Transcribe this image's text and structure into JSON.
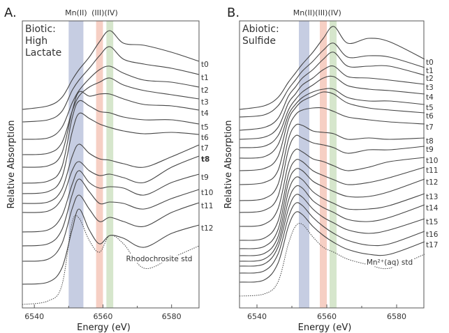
{
  "chart_data": [
    {
      "type": "line",
      "panel_label": "A.",
      "panel_title": [
        "Biotic:",
        "High",
        "Lactate"
      ],
      "xlabel": "Energy (eV)",
      "ylabel": "Relative Absorption",
      "xlim": [
        6536.5,
        6588
      ],
      "ylim": [
        8,
        420
      ],
      "xticks": [
        6540,
        6560,
        6580
      ],
      "minor_xticks": [
        6550,
        6570
      ],
      "grid": false,
      "bands": [
        {
          "label": "Mn(II)",
          "range": [
            6550,
            6554.3
          ],
          "color": "#c6cde2"
        },
        {
          "label": "(III)",
          "range": [
            6558,
            6560
          ],
          "color": "#f6cfc4"
        },
        {
          "label": "(IV)",
          "range": [
            6561,
            6563
          ],
          "color": "#d6e6cc"
        }
      ],
      "band_header": [
        "Mn(II)",
        "(III)(IV)"
      ],
      "x": [
        6536.5,
        6544,
        6548,
        6551,
        6553,
        6556,
        6559,
        6562,
        6566,
        6572,
        6580,
        6588
      ],
      "series": [
        {
          "name": "t0",
          "values": [
            293,
            298,
            310,
            335,
            350,
            368,
            390,
            406,
            388,
            385,
            375,
            362
          ]
        },
        {
          "name": "t1",
          "values": [
            275,
            278,
            290,
            320,
            335,
            352,
            370,
            383,
            365,
            358,
            352,
            343
          ]
        },
        {
          "name": "t2",
          "values": [
            250,
            252,
            267,
            302,
            320,
            337,
            350,
            355,
            345,
            335,
            332,
            325
          ]
        },
        {
          "name": "t3",
          "values": [
            228,
            230,
            245,
            290,
            312,
            325,
            332,
            338,
            328,
            320,
            314,
            308
          ]
        },
        {
          "name": "t4",
          "values": [
            210,
            212,
            230,
            290,
            318,
            312,
            315,
            315,
            308,
            300,
            298,
            292
          ]
        },
        {
          "name": "t5",
          "values": [
            187,
            190,
            210,
            280,
            305,
            298,
            290,
            288,
            282,
            278,
            278,
            272
          ]
        },
        {
          "name": "t6",
          "values": [
            172,
            175,
            195,
            260,
            287,
            280,
            272,
            267,
            262,
            258,
            260,
            257
          ]
        },
        {
          "name": "t7",
          "values": [
            158,
            160,
            178,
            225,
            243,
            230,
            222,
            220,
            215,
            210,
            225,
            242
          ]
        },
        {
          "name": "t8",
          "values": [
            145,
            147,
            165,
            205,
            218,
            205,
            198,
            200,
            195,
            188,
            210,
            226
          ],
          "bold_label": true
        },
        {
          "name": "t9",
          "values": [
            117,
            120,
            140,
            185,
            205,
            188,
            180,
            182,
            180,
            170,
            188,
            200
          ]
        },
        {
          "name": "t10",
          "values": [
            97,
            100,
            120,
            170,
            193,
            175,
            158,
            160,
            158,
            150,
            165,
            178
          ]
        },
        {
          "name": "t11",
          "values": [
            75,
            78,
            100,
            150,
            170,
            150,
            132,
            138,
            132,
            125,
            145,
            159
          ]
        },
        {
          "name": "t12",
          "values": [
            42,
            45,
            65,
            120,
            150,
            120,
            100,
            112,
            108,
            95,
            115,
            127
          ]
        }
      ],
      "standard": {
        "name": "Rhodochrosite std",
        "style": "dotted",
        "values": [
          13,
          18,
          40,
          130,
          137,
          105,
          88,
          112,
          100,
          65,
          80,
          97
        ]
      },
      "line_color": "#444444"
    },
    {
      "type": "line",
      "panel_label": "B.",
      "panel_title": [
        "Abiotic:",
        "Sulfide"
      ],
      "xlabel": "Energy (eV)",
      "ylabel": "Relative Absorption",
      "xlim": [
        6535,
        6587.8
      ],
      "ylim": [
        8,
        420
      ],
      "xticks": [
        6540,
        6560,
        6580
      ],
      "minor_xticks": [
        6550,
        6570
      ],
      "grid": false,
      "bands": [
        {
          "label": "Mn(II)",
          "range": [
            6552,
            6555
          ],
          "color": "#c6cde2"
        },
        {
          "label": "(III)",
          "range": [
            6558,
            6560
          ],
          "color": "#f6cfc4"
        },
        {
          "label": "(IV)",
          "range": [
            6560.8,
            6562.8
          ],
          "color": "#d6e6cc"
        }
      ],
      "band_header": [
        "Mn(II)",
        "(III)(IV)"
      ],
      "x": [
        6535,
        6542,
        6546,
        6549,
        6551,
        6553,
        6556,
        6559,
        6562,
        6566,
        6572,
        6578,
        6588
      ],
      "series": [
        {
          "name": "t0",
          "values": [
            293,
            298,
            310,
            332,
            345,
            358,
            375,
            395,
            412,
            388,
            395,
            390,
            365
          ]
        },
        {
          "name": "t1",
          "values": [
            282,
            285,
            298,
            322,
            335,
            348,
            362,
            378,
            388,
            368,
            370,
            368,
            353
          ]
        },
        {
          "name": "t2",
          "values": [
            263,
            267,
            280,
            312,
            325,
            338,
            350,
            365,
            375,
            355,
            355,
            355,
            342
          ]
        },
        {
          "name": "t3",
          "values": [
            250,
            253,
            267,
            302,
            315,
            328,
            338,
            350,
            355,
            340,
            338,
            335,
            329
          ]
        },
        {
          "name": "t4",
          "values": [
            238,
            240,
            255,
            292,
            307,
            318,
            328,
            338,
            340,
            327,
            322,
            320,
            315
          ]
        },
        {
          "name": "t5",
          "values": [
            223,
            225,
            242,
            285,
            300,
            310,
            318,
            322,
            322,
            310,
            305,
            305,
            300
          ]
        },
        {
          "name": "t6",
          "values": [
            205,
            208,
            225,
            278,
            295,
            305,
            312,
            318,
            315,
            302,
            295,
            292,
            288
          ]
        },
        {
          "name": "t7",
          "values": [
            185,
            188,
            205,
            265,
            285,
            292,
            295,
            295,
            290,
            282,
            278,
            275,
            272
          ]
        },
        {
          "name": "t8",
          "values": [
            162,
            165,
            185,
            250,
            270,
            270,
            262,
            260,
            258,
            250,
            252,
            250,
            252
          ]
        },
        {
          "name": "t9",
          "values": [
            145,
            148,
            168,
            235,
            255,
            252,
            245,
            242,
            238,
            230,
            235,
            235,
            240
          ]
        },
        {
          "name": "t10",
          "values": [
            125,
            128,
            150,
            215,
            235,
            232,
            222,
            218,
            212,
            205,
            210,
            218,
            224
          ]
        },
        {
          "name": "t11",
          "values": [
            105,
            108,
            132,
            200,
            220,
            218,
            205,
            198,
            192,
            185,
            188,
            195,
            210
          ]
        },
        {
          "name": "t12",
          "values": [
            93,
            96,
            120,
            188,
            207,
            205,
            190,
            182,
            175,
            168,
            168,
            175,
            193
          ]
        },
        {
          "name": "t13",
          "values": [
            83,
            86,
            110,
            175,
            195,
            192,
            175,
            165,
            158,
            150,
            150,
            155,
            172
          ]
        },
        {
          "name": "t14",
          "values": [
            75,
            78,
            102,
            162,
            182,
            180,
            162,
            152,
            145,
            135,
            132,
            138,
            156
          ]
        },
        {
          "name": "t15",
          "values": [
            68,
            71,
            95,
            150,
            170,
            167,
            150,
            138,
            130,
            120,
            115,
            120,
            136
          ]
        },
        {
          "name": "t16",
          "values": [
            58,
            61,
            85,
            138,
            158,
            155,
            138,
            125,
            115,
            105,
            98,
            100,
            118
          ]
        },
        {
          "name": "t17",
          "values": [
            45,
            48,
            72,
            125,
            145,
            142,
            125,
            112,
            102,
            92,
            85,
            85,
            103
          ]
        }
      ],
      "standard": {
        "name": "Mn²⁺(aq) std",
        "style": "dotted",
        "values": [
          25,
          28,
          45,
          100,
          125,
          128,
          110,
          95,
          88,
          78,
          70,
          65,
          85
        ]
      },
      "line_color": "#444444"
    }
  ]
}
